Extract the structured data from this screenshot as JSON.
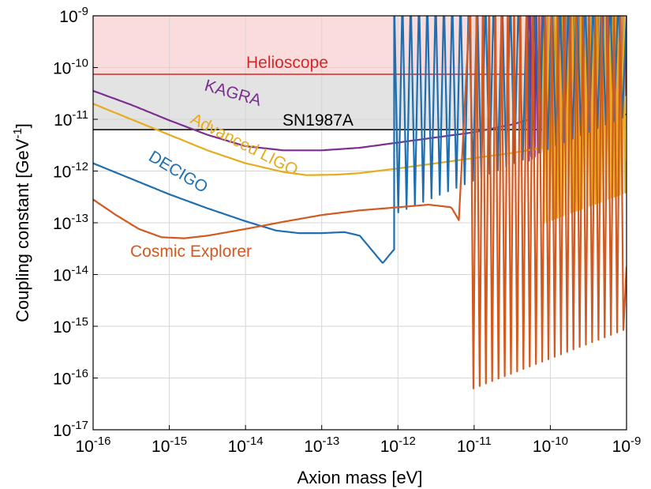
{
  "chart_data": {
    "type": "line",
    "title": "",
    "xlabel": "Axion mass [eV]",
    "ylabel": "Coupling constant [GeV",
    "ylabel_sup": "-1",
    "ylabel_tail": "]",
    "x_scale": "log",
    "y_scale": "log",
    "xlim_log10": [
      -16,
      -9
    ],
    "ylim_log10": [
      -17,
      -9
    ],
    "x_ticks": [
      {
        "base": "10",
        "exp": "-16"
      },
      {
        "base": "10",
        "exp": "-15"
      },
      {
        "base": "10",
        "exp": "-14"
      },
      {
        "base": "10",
        "exp": "-13"
      },
      {
        "base": "10",
        "exp": "-12"
      },
      {
        "base": "10",
        "exp": "-11"
      },
      {
        "base": "10",
        "exp": "-10"
      },
      {
        "base": "10",
        "exp": "-9"
      }
    ],
    "y_ticks": [
      {
        "base": "10",
        "exp": "-17"
      },
      {
        "base": "10",
        "exp": "-16"
      },
      {
        "base": "10",
        "exp": "-15"
      },
      {
        "base": "10",
        "exp": "-14"
      },
      {
        "base": "10",
        "exp": "-13"
      },
      {
        "base": "10",
        "exp": "-12"
      },
      {
        "base": "10",
        "exp": "-11"
      },
      {
        "base": "10",
        "exp": "-10"
      },
      {
        "base": "10",
        "exp": "-9"
      }
    ],
    "grid": true,
    "legend": "none (curves labeled inline)",
    "regions": [
      {
        "name": "Helioscope",
        "color": "#d62728",
        "fill": "#fbdcdc",
        "bound_log10": -10.13
      },
      {
        "name": "SN1987A",
        "color": "#000000",
        "fill": "#e3e3e3",
        "bound_log10": -11.2
      }
    ],
    "series": [
      {
        "name": "KAGRA",
        "color": "#7b2f8e",
        "x_log10": [
          -16,
          -15.5,
          -15,
          -14.5,
          -14,
          -13.5,
          -13,
          -12.5,
          -12,
          -11.5,
          -11,
          -10.5,
          -10.2
        ],
        "y_log10": [
          -10.45,
          -10.72,
          -11.02,
          -11.3,
          -11.52,
          -11.6,
          -11.6,
          -11.55,
          -11.45,
          -11.35,
          -11.25,
          -11.1,
          -10.97
        ],
        "oscillation": {
          "start_log10": -10.3,
          "peak_log10": -9,
          "trough_log10": -11.8
        },
        "tail_log10": -9.2
      },
      {
        "name": "Advanced LIGO",
        "color": "#e5ac1f",
        "x_log10": [
          -16,
          -15.5,
          -15,
          -14.5,
          -14,
          -13.5,
          -13.2,
          -12.8,
          -12.5,
          -12,
          -11.5,
          -11,
          -10.5,
          -10.1
        ],
        "y_log10": [
          -10.7,
          -11.0,
          -11.3,
          -11.6,
          -11.85,
          -12.02,
          -12.08,
          -12.07,
          -12.04,
          -11.95,
          -11.85,
          -11.75,
          -11.65,
          -11.55
        ],
        "oscillation": {
          "start_log10": -10.1,
          "peak_log10": -9,
          "trough_log10": -13
        },
        "tail_log10": -11.8
      },
      {
        "name": "DECIGO",
        "color": "#1f6fb0",
        "x_log10": [
          -16,
          -15.5,
          -15,
          -14.5,
          -14,
          -13.6,
          -13.3,
          -13,
          -12.7,
          -12.5
        ],
        "y_log10": [
          -11.85,
          -12.15,
          -12.45,
          -12.72,
          -12.97,
          -13.15,
          -13.2,
          -13.2,
          -13.18,
          -13.25
        ],
        "dip": {
          "center_log10": -12.2,
          "depth_log10": -13.78
        },
        "oscillation": {
          "start_log10": -12.05,
          "peak_log10": -9,
          "trough_log10": -12.8
        },
        "tail_log10": -9
      },
      {
        "name": "Cosmic Explorer",
        "color": "#d2591f",
        "x_log10": [
          -16,
          -15.7,
          -15.4,
          -15.1,
          -14.8,
          -14.5,
          -14,
          -13.5,
          -13,
          -12.5,
          -12,
          -11.6,
          -11.3,
          -11.2
        ],
        "y_log10": [
          -12.55,
          -12.85,
          -13.12,
          -13.28,
          -13.3,
          -13.25,
          -13.12,
          -12.98,
          -12.85,
          -12.76,
          -12.7,
          -12.65,
          -12.7,
          -12.95
        ],
        "oscillation": {
          "start_log10": -11.05,
          "peak_log10": -9.05,
          "trough_log10": -16.2
        },
        "tail_log10": -13.85
      }
    ],
    "annotations": [
      {
        "text": "Helioscope",
        "color": "#d62728"
      },
      {
        "text": "SN1987A",
        "color": "#000000"
      },
      {
        "text": "KAGRA",
        "color": "#7b2f8e"
      },
      {
        "text": "Advanced LIGO",
        "color": "#e5ac1f"
      },
      {
        "text": "DECIGO",
        "color": "#1f6fb0"
      },
      {
        "text": "Cosmic Explorer",
        "color": "#d2591f"
      }
    ]
  }
}
